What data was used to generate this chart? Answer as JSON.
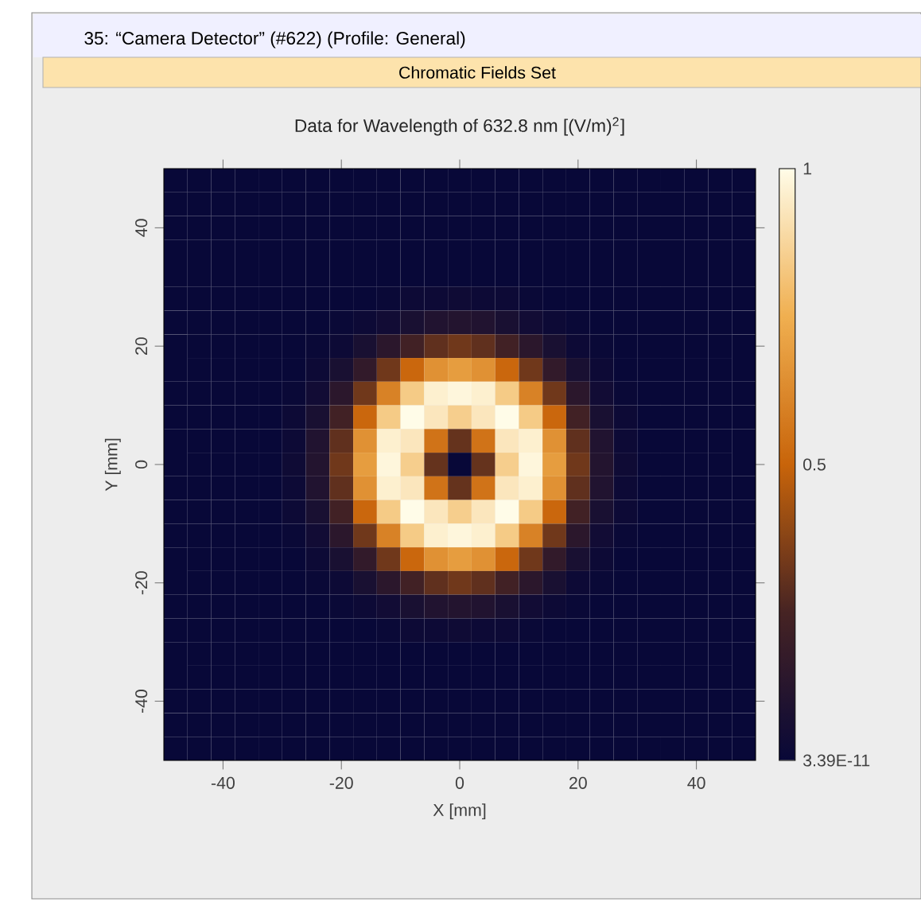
{
  "chart_data": {
    "type": "heatmap",
    "title": "Data for Wavelength of 632.8 nm  [(V/m)$^{2}$]",
    "subtitle": "Chromatic Fields Set",
    "annotations": [
      "35: “Camera Detector” (#622) (Profile: General)"
    ],
    "xlabel": "X [mm]",
    "ylabel": "Y [mm]",
    "xlim": [
      -50,
      50
    ],
    "ylim": [
      -50,
      50
    ],
    "xticks": [
      -40,
      -20,
      0,
      20,
      40
    ],
    "yticks": [
      -40,
      -20,
      0,
      20,
      40
    ],
    "clim": [
      3.39e-11,
      1
    ],
    "cticks": [
      {
        "value": 3.39e-11,
        "label": "3.39E-11"
      },
      0.5,
      1
    ],
    "cells": [
      [
        3.39e-11,
        3.39e-11,
        3.39e-11,
        3.39e-11,
        3.39e-11,
        3.39e-11,
        3.39e-11,
        3.39e-11,
        3.39e-11,
        3.39e-11,
        3.39e-11,
        3.39e-11,
        3.39e-11,
        3.39e-11,
        3.39e-11,
        3.39e-11,
        3.39e-11,
        3.39e-11,
        3.39e-11,
        3.39e-11,
        3.39e-11,
        3.39e-11,
        3.39e-11,
        3.39e-11,
        3.39e-11
      ],
      [
        3.39e-11,
        3.39e-11,
        3.39e-11,
        3.39e-11,
        3.39e-11,
        3.39e-11,
        3.39e-11,
        3.39e-11,
        3.39e-11,
        3.39e-11,
        3.39e-11,
        3.39e-11,
        3.39e-11,
        3.39e-11,
        3.39e-11,
        3.39e-11,
        3.39e-11,
        3.39e-11,
        3.39e-11,
        3.39e-11,
        3.39e-11,
        3.39e-11,
        3.39e-11,
        3.39e-11,
        3.39e-11
      ],
      [
        3.39e-11,
        3.39e-11,
        3.39e-11,
        3.39e-11,
        3.39e-11,
        3.39e-11,
        3.39e-11,
        3.39e-11,
        3.39e-11,
        3.39e-11,
        3.39e-11,
        3.39e-11,
        3.39e-11,
        3.39e-11,
        3.39e-11,
        3.39e-11,
        3.39e-11,
        3.39e-11,
        3.39e-11,
        3.39e-11,
        3.39e-11,
        3.39e-11,
        3.39e-11,
        3.39e-11,
        3.39e-11
      ],
      [
        3.39e-11,
        3.39e-11,
        3.39e-11,
        3.39e-11,
        3.39e-11,
        3.39e-11,
        3.39e-11,
        3.39e-11,
        3.39e-11,
        3.39e-11,
        3.39e-11,
        3.39e-11,
        3.39e-11,
        3.39e-11,
        3.39e-11,
        3.39e-11,
        3.39e-11,
        3.39e-11,
        3.39e-11,
        3.39e-11,
        3.39e-11,
        3.39e-11,
        3.39e-11,
        3.39e-11,
        3.39e-11
      ],
      [
        3.39e-11,
        3.39e-11,
        3.39e-11,
        3.39e-11,
        3.39e-11,
        3.39e-11,
        3.39e-11,
        3.39e-11,
        3.39e-11,
        3.39e-11,
        3.39e-11,
        3.39e-11,
        3.39e-11,
        3.39e-11,
        3.39e-11,
        3.39e-11,
        3.39e-11,
        3.39e-11,
        3.39e-11,
        3.39e-11,
        3.39e-11,
        3.39e-11,
        3.39e-11,
        3.39e-11,
        3.39e-11
      ],
      [
        3.39e-11,
        3.39e-11,
        3.39e-11,
        3.39e-11,
        3.39e-11,
        3.39e-11,
        3.39e-11,
        3.39e-11,
        3.39e-11,
        0.01,
        0.02,
        0.02,
        0.03,
        0.02,
        0.02,
        0.01,
        3.39e-11,
        3.39e-11,
        3.39e-11,
        3.39e-11,
        3.39e-11,
        3.39e-11,
        3.39e-11,
        3.39e-11,
        3.39e-11
      ],
      [
        3.39e-11,
        3.39e-11,
        3.39e-11,
        3.39e-11,
        3.39e-11,
        3.39e-11,
        3.39e-11,
        0.01,
        0.02,
        0.04,
        0.07,
        0.1,
        0.11,
        0.1,
        0.07,
        0.04,
        0.02,
        0.01,
        3.39e-11,
        3.39e-11,
        3.39e-11,
        3.39e-11,
        3.39e-11,
        3.39e-11,
        3.39e-11
      ],
      [
        3.39e-11,
        3.39e-11,
        3.39e-11,
        3.39e-11,
        3.39e-11,
        3.39e-11,
        0.01,
        0.02,
        0.07,
        0.14,
        0.23,
        0.3,
        0.33,
        0.3,
        0.23,
        0.14,
        0.07,
        0.02,
        0.01,
        3.39e-11,
        3.39e-11,
        3.39e-11,
        3.39e-11,
        3.39e-11,
        3.39e-11
      ],
      [
        3.39e-11,
        3.39e-11,
        3.39e-11,
        3.39e-11,
        3.39e-11,
        3.39e-11,
        0.02,
        0.07,
        0.17,
        0.33,
        0.51,
        0.65,
        0.69,
        0.65,
        0.51,
        0.33,
        0.17,
        0.07,
        0.02,
        3.39e-11,
        3.39e-11,
        3.39e-11,
        3.39e-11,
        3.39e-11,
        3.39e-11
      ],
      [
        3.39e-11,
        3.39e-11,
        3.39e-11,
        3.39e-11,
        3.39e-11,
        0.01,
        0.04,
        0.14,
        0.33,
        0.6,
        0.84,
        0.96,
        0.98,
        0.96,
        0.84,
        0.6,
        0.33,
        0.14,
        0.04,
        0.01,
        3.39e-11,
        3.39e-11,
        3.39e-11,
        3.39e-11,
        3.39e-11
      ],
      [
        3.39e-11,
        3.39e-11,
        3.39e-11,
        3.39e-11,
        3.39e-11,
        0.02,
        0.07,
        0.23,
        0.51,
        0.84,
        1,
        0.93,
        0.85,
        0.93,
        1,
        0.84,
        0.51,
        0.23,
        0.07,
        0.02,
        3.39e-11,
        3.39e-11,
        3.39e-11,
        3.39e-11,
        3.39e-11
      ],
      [
        3.39e-11,
        3.39e-11,
        3.39e-11,
        3.39e-11,
        3.39e-11,
        0.02,
        0.1,
        0.3,
        0.65,
        0.96,
        0.93,
        0.55,
        0.31,
        0.55,
        0.93,
        0.96,
        0.65,
        0.3,
        0.1,
        0.02,
        3.39e-11,
        3.39e-11,
        3.39e-11,
        3.39e-11,
        3.39e-11
      ],
      [
        3.39e-11,
        3.39e-11,
        3.39e-11,
        3.39e-11,
        3.39e-11,
        0.03,
        0.11,
        0.33,
        0.69,
        0.98,
        0.85,
        0.31,
        3.39e-11,
        0.31,
        0.85,
        0.98,
        0.69,
        0.33,
        0.11,
        0.03,
        3.39e-11,
        3.39e-11,
        3.39e-11,
        3.39e-11,
        3.39e-11
      ],
      [
        3.39e-11,
        3.39e-11,
        3.39e-11,
        3.39e-11,
        3.39e-11,
        0.02,
        0.1,
        0.3,
        0.65,
        0.96,
        0.93,
        0.55,
        0.31,
        0.55,
        0.93,
        0.96,
        0.65,
        0.3,
        0.1,
        0.02,
        3.39e-11,
        3.39e-11,
        3.39e-11,
        3.39e-11,
        3.39e-11
      ],
      [
        3.39e-11,
        3.39e-11,
        3.39e-11,
        3.39e-11,
        3.39e-11,
        0.02,
        0.07,
        0.23,
        0.51,
        0.84,
        1,
        0.93,
        0.85,
        0.93,
        1,
        0.84,
        0.51,
        0.23,
        0.07,
        0.02,
        3.39e-11,
        3.39e-11,
        3.39e-11,
        3.39e-11,
        3.39e-11
      ],
      [
        3.39e-11,
        3.39e-11,
        3.39e-11,
        3.39e-11,
        3.39e-11,
        0.01,
        0.04,
        0.14,
        0.33,
        0.6,
        0.84,
        0.96,
        0.98,
        0.96,
        0.84,
        0.6,
        0.33,
        0.14,
        0.04,
        0.01,
        3.39e-11,
        3.39e-11,
        3.39e-11,
        3.39e-11,
        3.39e-11
      ],
      [
        3.39e-11,
        3.39e-11,
        3.39e-11,
        3.39e-11,
        3.39e-11,
        3.39e-11,
        0.02,
        0.07,
        0.17,
        0.33,
        0.51,
        0.65,
        0.69,
        0.65,
        0.51,
        0.33,
        0.17,
        0.07,
        0.02,
        3.39e-11,
        3.39e-11,
        3.39e-11,
        3.39e-11,
        3.39e-11,
        3.39e-11
      ],
      [
        3.39e-11,
        3.39e-11,
        3.39e-11,
        3.39e-11,
        3.39e-11,
        3.39e-11,
        0.01,
        0.02,
        0.07,
        0.14,
        0.23,
        0.3,
        0.33,
        0.3,
        0.23,
        0.14,
        0.07,
        0.02,
        0.01,
        3.39e-11,
        3.39e-11,
        3.39e-11,
        3.39e-11,
        3.39e-11,
        3.39e-11
      ],
      [
        3.39e-11,
        3.39e-11,
        3.39e-11,
        3.39e-11,
        3.39e-11,
        3.39e-11,
        3.39e-11,
        0.01,
        0.02,
        0.04,
        0.07,
        0.1,
        0.11,
        0.1,
        0.07,
        0.04,
        0.02,
        0.01,
        3.39e-11,
        3.39e-11,
        3.39e-11,
        3.39e-11,
        3.39e-11,
        3.39e-11,
        3.39e-11
      ],
      [
        3.39e-11,
        3.39e-11,
        3.39e-11,
        3.39e-11,
        3.39e-11,
        3.39e-11,
        3.39e-11,
        3.39e-11,
        3.39e-11,
        0.01,
        0.02,
        0.02,
        0.03,
        0.02,
        0.02,
        0.01,
        3.39e-11,
        3.39e-11,
        3.39e-11,
        3.39e-11,
        3.39e-11,
        3.39e-11,
        3.39e-11,
        3.39e-11,
        3.39e-11
      ],
      [
        3.39e-11,
        3.39e-11,
        3.39e-11,
        3.39e-11,
        3.39e-11,
        3.39e-11,
        3.39e-11,
        3.39e-11,
        3.39e-11,
        3.39e-11,
        3.39e-11,
        3.39e-11,
        3.39e-11,
        3.39e-11,
        3.39e-11,
        3.39e-11,
        3.39e-11,
        3.39e-11,
        3.39e-11,
        3.39e-11,
        3.39e-11,
        3.39e-11,
        3.39e-11,
        3.39e-11,
        3.39e-11
      ],
      [
        3.39e-11,
        3.39e-11,
        3.39e-11,
        3.39e-11,
        3.39e-11,
        3.39e-11,
        3.39e-11,
        3.39e-11,
        3.39e-11,
        3.39e-11,
        3.39e-11,
        3.39e-11,
        3.39e-11,
        3.39e-11,
        3.39e-11,
        3.39e-11,
        3.39e-11,
        3.39e-11,
        3.39e-11,
        3.39e-11,
        3.39e-11,
        3.39e-11,
        3.39e-11,
        3.39e-11,
        3.39e-11
      ],
      [
        3.39e-11,
        3.39e-11,
        3.39e-11,
        3.39e-11,
        3.39e-11,
        3.39e-11,
        3.39e-11,
        3.39e-11,
        3.39e-11,
        3.39e-11,
        3.39e-11,
        3.39e-11,
        3.39e-11,
        3.39e-11,
        3.39e-11,
        3.39e-11,
        3.39e-11,
        3.39e-11,
        3.39e-11,
        3.39e-11,
        3.39e-11,
        3.39e-11,
        3.39e-11,
        3.39e-11,
        3.39e-11
      ],
      [
        3.39e-11,
        3.39e-11,
        3.39e-11,
        3.39e-11,
        3.39e-11,
        3.39e-11,
        3.39e-11,
        3.39e-11,
        3.39e-11,
        3.39e-11,
        3.39e-11,
        3.39e-11,
        3.39e-11,
        3.39e-11,
        3.39e-11,
        3.39e-11,
        3.39e-11,
        3.39e-11,
        3.39e-11,
        3.39e-11,
        3.39e-11,
        3.39e-11,
        3.39e-11,
        3.39e-11,
        3.39e-11
      ],
      [
        3.39e-11,
        3.39e-11,
        3.39e-11,
        3.39e-11,
        3.39e-11,
        3.39e-11,
        3.39e-11,
        3.39e-11,
        3.39e-11,
        3.39e-11,
        3.39e-11,
        3.39e-11,
        3.39e-11,
        3.39e-11,
        3.39e-11,
        3.39e-11,
        3.39e-11,
        3.39e-11,
        3.39e-11,
        3.39e-11,
        3.39e-11,
        3.39e-11,
        3.39e-11,
        3.39e-11,
        3.39e-11
      ]
    ]
  }
}
